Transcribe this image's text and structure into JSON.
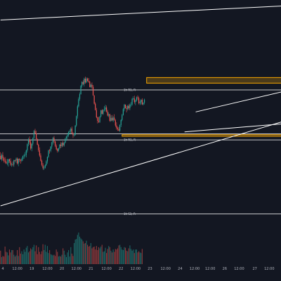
{
  "chart_data": {
    "type": "candlestick",
    "background": "#131722",
    "colors": {
      "up": "#26a69a",
      "down": "#ef5350",
      "lines": "#ffffff",
      "zone_border": "#f7a600",
      "zone_fill": "#4a3a1a"
    },
    "x_axis": {
      "ticks": [
        {
          "label": "4",
          "i": 2
        },
        {
          "label": "12:00",
          "i": 15
        },
        {
          "label": "19",
          "i": 28
        },
        {
          "label": "12:00",
          "i": 42
        },
        {
          "label": "20",
          "i": 55
        },
        {
          "label": "12:00",
          "i": 68
        },
        {
          "label": "21",
          "i": 81
        },
        {
          "label": "12:00",
          "i": 95
        },
        {
          "label": "22",
          "i": 108
        },
        {
          "label": "12:00",
          "i": 121
        },
        {
          "label": "23",
          "i": 134
        },
        {
          "label": "12:00",
          "i": 148
        },
        {
          "label": "24",
          "i": 161
        },
        {
          "label": "12:00",
          "i": 174
        },
        {
          "label": "12:00",
          "i": 188
        },
        {
          "label": "26",
          "i": 201
        },
        {
          "label": "12:00",
          "i": 214
        },
        {
          "label": "27",
          "i": 228
        },
        {
          "label": "12:00",
          "i": 241
        }
      ]
    },
    "horizontal_levels": [
      {
        "price": 112.5,
        "label": "1h R1, R"
      },
      {
        "price": 101.5,
        "label": ""
      },
      {
        "price": 100.0,
        "label": "1h R1, R"
      },
      {
        "price": 81.5,
        "label": "1h S1, R"
      }
    ],
    "zones": [
      {
        "from": 131,
        "to": 252,
        "low": 114.2,
        "high": 115.6
      },
      {
        "from": 109,
        "to": 252,
        "low": 100.9,
        "high": 101.3
      }
    ],
    "trend_lines": [
      {
        "from": [
          0,
          130
        ],
        "to": [
          252,
          133.5
        ]
      },
      {
        "from": [
          0,
          83.5
        ],
        "to": [
          252,
          104.5
        ]
      },
      {
        "from": [
          165,
          102
        ],
        "to": [
          252,
          104
        ]
      },
      {
        "from": [
          175,
          107
        ],
        "to": [
          252,
          112
        ]
      }
    ],
    "candles_ohlc": [
      [
        96,
        96.91,
        95.14,
        95.14
      ],
      [
        95.14,
        96.59,
        94.67,
        96.21
      ],
      [
        96.21,
        96.97,
        94.84,
        95.41
      ],
      [
        95.41,
        95.74,
        94.34,
        94.74
      ],
      [
        94.74,
        95.69,
        94.15,
        94.57
      ],
      [
        94.57,
        95.17,
        93.95,
        94.15
      ],
      [
        94.15,
        95.24,
        93.68,
        94.24
      ],
      [
        94.24,
        95.2,
        93.32,
        95.18
      ],
      [
        95.18,
        95.29,
        94.26,
        94.71
      ],
      [
        94.71,
        95.41,
        93.48,
        93.79
      ],
      [
        93.79,
        94.3,
        93.27,
        93.92
      ],
      [
        93.92,
        94.62,
        93.42,
        93.84
      ],
      [
        93.84,
        95.07,
        93.29,
        94.92
      ],
      [
        94.92,
        95.04,
        94.46,
        94.84
      ],
      [
        94.84,
        95.58,
        94.25,
        95.32
      ],
      [
        95.32,
        95.6,
        93.81,
        94.1
      ],
      [
        94.1,
        95.3,
        93.42,
        95.3
      ],
      [
        95.3,
        95.36,
        94.42,
        94.98
      ],
      [
        94.98,
        95.19,
        94.08,
        94.78
      ],
      [
        94.78,
        95.59,
        94.52,
        95.26
      ],
      [
        95.26,
        96.08,
        94.79,
        95.99
      ],
      [
        95.99,
        96.46,
        95.26,
        96.12
      ],
      [
        96.12,
        96.93,
        95.67,
        96.23
      ],
      [
        96.23,
        97.56,
        95.62,
        97.34
      ],
      [
        97.34,
        99.11,
        96.84,
        98.92
      ],
      [
        98.92,
        100.5,
        98.41,
        100.16
      ],
      [
        100.16,
        100.87,
        98.75,
        99.4
      ],
      [
        99.4,
        100.03,
        97.44,
        97.84
      ],
      [
        97.84,
        99.07,
        97.17,
        99.05
      ],
      [
        99.05,
        100.6,
        98.6,
        100.52
      ],
      [
        100.52,
        102.49,
        100.24,
        102.23
      ],
      [
        102.23,
        102.78,
        101.43,
        101.59
      ],
      [
        101.59,
        102.33,
        100.19,
        100.19
      ],
      [
        100.19,
        100.4,
        98.67,
        98.8
      ],
      [
        98.8,
        99.03,
        97.01,
        97.41
      ],
      [
        97.41,
        98.11,
        95.74,
        96.09
      ],
      [
        96.09,
        96.64,
        94.6,
        94.77
      ],
      [
        94.77,
        95.06,
        93.38,
        93.76
      ],
      [
        93.76,
        94.2,
        92.56,
        92.95
      ],
      [
        92.95,
        93.46,
        92.46,
        93.02
      ],
      [
        93.02,
        93.89,
        92.84,
        93.66
      ],
      [
        93.66,
        94.9,
        93.45,
        94.63
      ],
      [
        94.63,
        95.87,
        94.06,
        95.75
      ],
      [
        95.75,
        97.55,
        95.53,
        97.36
      ],
      [
        97.36,
        97.73,
        96.58,
        97.33
      ],
      [
        97.33,
        98.4,
        96.93,
        98.35
      ],
      [
        98.35,
        99.53,
        97.79,
        99.38
      ],
      [
        99.38,
        100.76,
        98.84,
        100.51
      ],
      [
        100.51,
        100.96,
        99.18,
        99.65
      ],
      [
        99.65,
        99.74,
        98.23,
        98.52
      ],
      [
        98.52,
        98.88,
        97.43,
        97.68
      ],
      [
        97.68,
        97.91,
        96.84,
        97.26
      ],
      [
        97.26,
        98.02,
        96.94,
        97.92
      ],
      [
        97.92,
        98.93,
        97.62,
        98.85
      ],
      [
        98.85,
        99.41,
        97.93,
        98.46
      ],
      [
        98.46,
        99.33,
        98.08,
        99.31
      ],
      [
        99.31,
        99.69,
        98.27,
        98.62
      ],
      [
        98.62,
        99.43,
        98.31,
        99.28
      ],
      [
        99.28,
        100.44,
        99.13,
        100.34
      ],
      [
        100.34,
        100.98,
        99.76,
        100.81
      ],
      [
        100.81,
        101.78,
        100.05,
        101.21
      ],
      [
        101.21,
        102.22,
        100.79,
        101.93
      ],
      [
        101.93,
        102.61,
        101.58,
        102.21
      ],
      [
        102.21,
        103.15,
        101.53,
        102.82
      ],
      [
        102.82,
        103.35,
        101.66,
        101.66
      ],
      [
        101.66,
        101.91,
        100.48,
        101.15
      ],
      [
        101.15,
        101.67,
        100.82,
        101.25
      ],
      [
        101.25,
        103.69,
        101.08,
        103.59
      ],
      [
        103.59,
        106.08,
        103.24,
        105.93
      ],
      [
        105.93,
        108.79,
        105.33,
        108.41
      ],
      [
        108.41,
        110.66,
        108.11,
        110.24
      ],
      [
        110.24,
        111.87,
        109.81,
        111.44
      ],
      [
        111.44,
        113.72,
        111.33,
        113.54
      ],
      [
        113.54,
        114.68,
        113.09,
        114.47
      ],
      [
        114.47,
        114.91,
        113.74,
        113.97
      ],
      [
        113.97,
        115.56,
        113.35,
        115.31
      ],
      [
        115.31,
        115.82,
        114.06,
        114.39
      ],
      [
        114.39,
        115.64,
        114.22,
        115.34
      ],
      [
        115.34,
        115.56,
        114.56,
        114.77
      ],
      [
        114.77,
        115.5,
        114.29,
        114.55
      ],
      [
        114.55,
        114.75,
        113.13,
        113.22
      ],
      [
        113.22,
        114.07,
        112.95,
        113.78
      ],
      [
        113.78,
        114.36,
        112.81,
        113.28
      ],
      [
        113.28,
        113.73,
        111.06,
        111.15
      ],
      [
        111.15,
        111.15,
        108.85,
        109.07
      ],
      [
        109.07,
        109.43,
        107.37,
        107.46
      ],
      [
        107.46,
        107.99,
        105.43,
        105.65
      ],
      [
        105.65,
        105.83,
        104.14,
        104.77
      ],
      [
        104.77,
        105.74,
        104.25,
        104.51
      ],
      [
        104.51,
        105.93,
        104.24,
        105.87
      ],
      [
        105.87,
        107.52,
        105.62,
        107.4
      ],
      [
        107.4,
        107.7,
        106.46,
        106.49
      ],
      [
        106.49,
        107.55,
        106.21,
        107.52
      ],
      [
        107.52,
        108.43,
        107.13,
        107.62
      ],
      [
        107.62,
        108.78,
        107.09,
        108.11
      ],
      [
        108.11,
        108.6,
        106.85,
        107.11
      ],
      [
        107.11,
        107.51,
        105.9,
        106.09
      ],
      [
        106.09,
        106.9,
        105.69,
        106.42
      ],
      [
        106.42,
        106.55,
        104.5,
        104.77
      ],
      [
        104.77,
        106.15,
        104.56,
        105.51
      ],
      [
        105.51,
        106.24,
        104.73,
        104.87
      ],
      [
        104.87,
        105.94,
        104.41,
        105.57
      ],
      [
        105.57,
        106.41,
        104.8,
        104.92
      ],
      [
        104.92,
        105.21,
        103.26,
        103.61
      ],
      [
        103.61,
        104.4,
        102.55,
        102.96
      ],
      [
        102.96,
        103.31,
        102.26,
        102.69
      ],
      [
        102.69,
        103.24,
        102.2,
        102.3
      ],
      [
        102.3,
        103.88,
        101.97,
        103.71
      ],
      [
        103.71,
        105.14,
        103.21,
        104.99
      ],
      [
        104.99,
        106.5,
        104.68,
        106.23
      ],
      [
        106.23,
        107.98,
        106.09,
        107.7
      ],
      [
        107.7,
        109.02,
        107.17,
        108.84
      ],
      [
        108.84,
        108.84,
        107.86,
        107.96
      ],
      [
        107.96,
        108.49,
        106.89,
        107.72
      ],
      [
        107.72,
        108.76,
        107.35,
        108.51
      ],
      [
        108.51,
        108.92,
        107.54,
        107.93
      ],
      [
        107.93,
        109.11,
        107.41,
        108.81
      ],
      [
        108.81,
        109.48,
        108.31,
        108.86
      ],
      [
        108.86,
        110.49,
        108.56,
        110.28
      ],
      [
        110.28,
        110.91,
        109.98,
        110.38
      ],
      [
        110.38,
        111.05,
        109.05,
        109.48
      ],
      [
        109.48,
        110.14,
        108.69,
        109.91
      ],
      [
        109.91,
        110.87,
        109.59,
        110.65
      ],
      [
        110.65,
        111.14,
        109.96,
        110.42
      ],
      [
        110.42,
        110.82,
        108.91,
        109.19
      ],
      [
        109.19,
        109.85,
        108.73,
        109.44
      ],
      [
        109.44,
        110.23,
        108.9,
        110.04
      ],
      [
        110.04,
        110.42,
        108.72,
        108.89
      ],
      [
        108.89,
        109.4,
        108.65,
        109.32
      ],
      [
        109.32,
        110.33,
        108.87,
        110.09
      ]
    ],
    "volumes": [
      2.3,
      1.2,
      1.4,
      1.3,
      3.0,
      2.1,
      2.0,
      1.5,
      2.5,
      2.0,
      2.4,
      2.4,
      1.6,
      1.3,
      1.5,
      2.4,
      1.4,
      2.9,
      1.8,
      2.2,
      1.7,
      2.5,
      2.1,
      2.8,
      3.1,
      2.0,
      2.2,
      2.7,
      2.5,
      2.9,
      3.3,
      2.2,
      3.2,
      1.7,
      2.9,
      2.1,
      1.7,
      2.2,
      3.4,
      2.4,
      3.3,
      2.1,
      3.1,
      1.9,
      2.4,
      1.7,
      1.6,
      1.5,
      1.6,
      1.4,
      2.5,
      2.1,
      1.3,
      1.4,
      1.3,
      1.6,
      2.7,
      2.3,
      1.6,
      1.2,
      2.0,
      2.4,
      1.3,
      2.9,
      1.8,
      1.4,
      3.6,
      4.2,
      4.3,
      5.0,
      5.4,
      4.7,
      4.4,
      4.2,
      3.9,
      3.5,
      3.6,
      4.0,
      3.3,
      3.0,
      3.1,
      3.6,
      2.7,
      2.9,
      3.0,
      2.5,
      3.1,
      2.4,
      2.9,
      2.7,
      3.0,
      3.3,
      2.1,
      2.2,
      2.8,
      1.9,
      2.6,
      3.1,
      2.9,
      2.3,
      2.0,
      2.5,
      2.1,
      2.6,
      2.5,
      2.7,
      3.2,
      3.3,
      2.9,
      2.5,
      2.4,
      2.9,
      2.8,
      2.3,
      2.2,
      2.7,
      3.2,
      2.6,
      2.3,
      2.5,
      1.9,
      2.5,
      2.5,
      2.0,
      2.2,
      2.0,
      1.9,
      2.6
    ]
  }
}
